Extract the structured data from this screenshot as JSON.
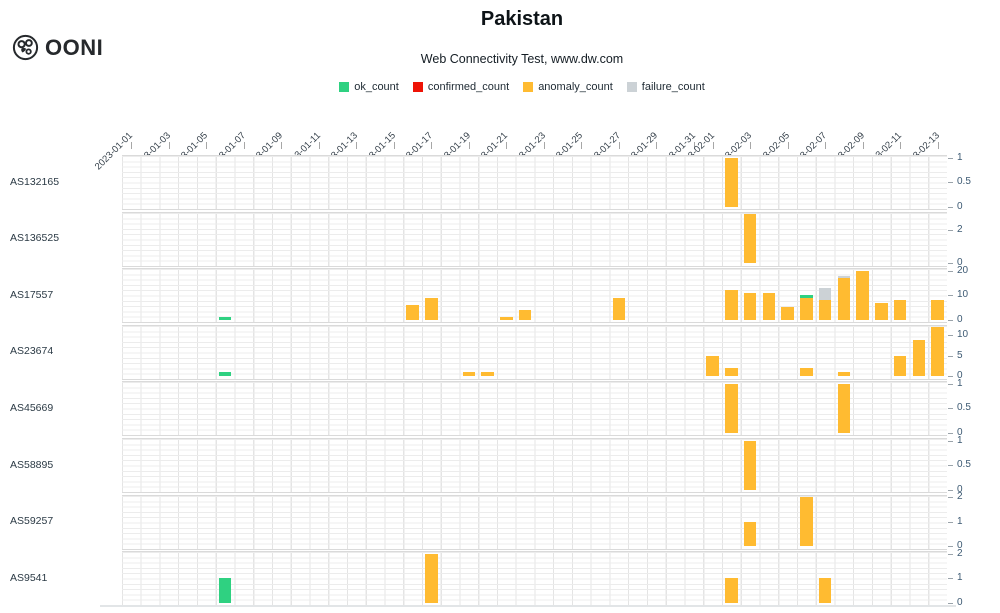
{
  "header": {
    "logo_text": "OONI",
    "title": "Pakistan",
    "subtitle": "Web Connectivity Test, www.dw.com"
  },
  "chart_data": {
    "type": "bar",
    "variant": "small-multiples-stacked-by-ASN",
    "title": "Pakistan",
    "subtitle": "Web Connectivity Test, www.dw.com",
    "x_start": "2023-01-01",
    "x_end": "2023-02-14",
    "grid": true,
    "legend_position": "top-center",
    "x_tick_labels": [
      "2023-01-01",
      "2023-01-03",
      "2023-01-05",
      "2023-01-07",
      "2023-01-09",
      "2023-01-11",
      "2023-01-13",
      "2023-01-15",
      "2023-01-17",
      "2023-01-19",
      "2023-01-21",
      "2023-01-23",
      "2023-01-25",
      "2023-01-27",
      "2023-01-29",
      "2023-01-31",
      "2023-02-01",
      "2023-02-03",
      "2023-02-05",
      "2023-02-07",
      "2023-02-09",
      "2023-02-11",
      "2023-02-13"
    ],
    "colors": {
      "ok": "#2fd181",
      "confirmed": "#ee1306",
      "anomaly": "#ffbb31",
      "failure": "#ccd2d6",
      "axis_text": "#3d5a73",
      "grid_line": "#ececec"
    },
    "legend": [
      {
        "key": "ok",
        "label": "ok_count"
      },
      {
        "key": "confirmed",
        "label": "confirmed_count"
      },
      {
        "key": "anomaly",
        "label": "anomaly_count"
      },
      {
        "key": "failure",
        "label": "failure_count"
      }
    ],
    "stack_order": [
      "anomaly",
      "failure",
      "ok",
      "confirmed"
    ],
    "rows": [
      {
        "label": "AS132165",
        "ymax": 1,
        "yticks": [
          1,
          0.5,
          0
        ],
        "bars": [
          {
            "date": "2023-02-02",
            "anomaly": 1
          }
        ]
      },
      {
        "label": "AS136525",
        "ymax": 3,
        "yticks": [
          2,
          0
        ],
        "bars": [
          {
            "date": "2023-02-03",
            "anomaly": 3
          }
        ]
      },
      {
        "label": "AS17557",
        "ymax": 20,
        "yticks": [
          20,
          10,
          0
        ],
        "bars": [
          {
            "date": "2023-01-06",
            "ok": 1
          },
          {
            "date": "2023-01-16",
            "anomaly": 6
          },
          {
            "date": "2023-01-17",
            "anomaly": 9
          },
          {
            "date": "2023-01-21",
            "anomaly": 1
          },
          {
            "date": "2023-01-22",
            "anomaly": 4
          },
          {
            "date": "2023-01-27",
            "anomaly": 9
          },
          {
            "date": "2023-02-02",
            "anomaly": 12
          },
          {
            "date": "2023-02-03",
            "anomaly": 11
          },
          {
            "date": "2023-02-04",
            "anomaly": 11
          },
          {
            "date": "2023-02-05",
            "anomaly": 5
          },
          {
            "date": "2023-02-06",
            "anomaly": 9,
            "ok": 1
          },
          {
            "date": "2023-02-07",
            "anomaly": 8,
            "failure": 5
          },
          {
            "date": "2023-02-08",
            "anomaly": 17,
            "failure": 1
          },
          {
            "date": "2023-02-09",
            "anomaly": 20
          },
          {
            "date": "2023-02-10",
            "anomaly": 7
          },
          {
            "date": "2023-02-11",
            "anomaly": 8
          },
          {
            "date": "2023-02-13",
            "anomaly": 8
          }
        ]
      },
      {
        "label": "AS23674",
        "ymax": 12,
        "yticks": [
          10,
          5,
          0
        ],
        "bars": [
          {
            "date": "2023-01-06",
            "ok": 1
          },
          {
            "date": "2023-01-19",
            "anomaly": 1
          },
          {
            "date": "2023-01-20",
            "anomaly": 1
          },
          {
            "date": "2023-02-01",
            "anomaly": 5
          },
          {
            "date": "2023-02-02",
            "anomaly": 2
          },
          {
            "date": "2023-02-06",
            "anomaly": 2
          },
          {
            "date": "2023-02-08",
            "anomaly": 1
          },
          {
            "date": "2023-02-11",
            "anomaly": 5
          },
          {
            "date": "2023-02-12",
            "anomaly": 9
          },
          {
            "date": "2023-02-13",
            "anomaly": 12
          }
        ]
      },
      {
        "label": "AS45669",
        "ymax": 1,
        "yticks": [
          1,
          0.5,
          0
        ],
        "bars": [
          {
            "date": "2023-02-02",
            "anomaly": 1
          },
          {
            "date": "2023-02-08",
            "anomaly": 1
          }
        ]
      },
      {
        "label": "AS58895",
        "ymax": 1,
        "yticks": [
          1,
          0.5,
          0
        ],
        "bars": [
          {
            "date": "2023-02-03",
            "anomaly": 1
          }
        ]
      },
      {
        "label": "AS59257",
        "ymax": 2,
        "yticks": [
          2,
          1,
          0
        ],
        "bars": [
          {
            "date": "2023-02-03",
            "anomaly": 1
          },
          {
            "date": "2023-02-06",
            "anomaly": 2
          }
        ]
      },
      {
        "label": "AS9541",
        "ymax": 2,
        "yticks": [
          2,
          1,
          0
        ],
        "bars": [
          {
            "date": "2023-01-06",
            "ok": 1
          },
          {
            "date": "2023-01-17",
            "anomaly": 2
          },
          {
            "date": "2023-02-02",
            "anomaly": 1
          },
          {
            "date": "2023-02-07",
            "anomaly": 1
          }
        ]
      }
    ]
  }
}
